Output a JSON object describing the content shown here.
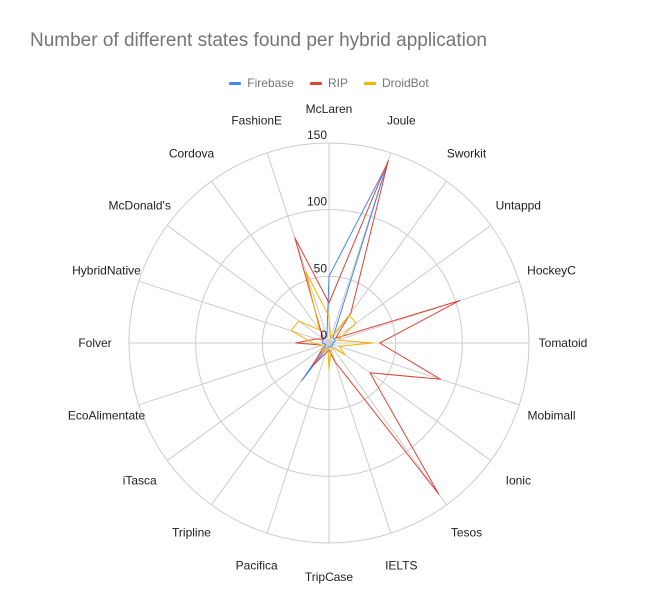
{
  "chart_data": {
    "type": "radar",
    "title": "Number of different states found per hybrid application",
    "legend_position": "top",
    "rlim": [
      0,
      150
    ],
    "r_ticks": [
      "0",
      "50",
      "100",
      "150"
    ],
    "categories": [
      "McLaren",
      "Joule",
      "Sworkit",
      "Untappd",
      "HockeyC",
      "Tomatoid",
      "Mobimall",
      "Ionic",
      "Tesos",
      "IELTS",
      "TripCase",
      "Pacifica",
      "Tripline",
      "iTasca",
      "EcoAlimentate",
      "Folver",
      "HybridNative",
      "McDonald's",
      "Cordova",
      "FashionE"
    ],
    "series": [
      {
        "name": "Firebase",
        "color": "#4285f4",
        "values": [
          50,
          141,
          5,
          5,
          5,
          3,
          3,
          3,
          3,
          3,
          3,
          3,
          35,
          3,
          3,
          5,
          5,
          5,
          5,
          5
        ]
      },
      {
        "name": "RIP",
        "color": "#db4437",
        "values": [
          30,
          144,
          28,
          6,
          103,
          38,
          88,
          38,
          140,
          15,
          5,
          8,
          22,
          5,
          5,
          25,
          10,
          5,
          10,
          83
        ]
      },
      {
        "name": "DroidBot",
        "color": "#f4b400",
        "values": [
          20,
          4,
          26,
          25,
          7,
          33,
          8,
          15,
          4,
          5,
          20,
          3,
          10,
          5,
          5,
          12,
          30,
          28,
          12,
          56
        ]
      }
    ],
    "grid": true
  }
}
